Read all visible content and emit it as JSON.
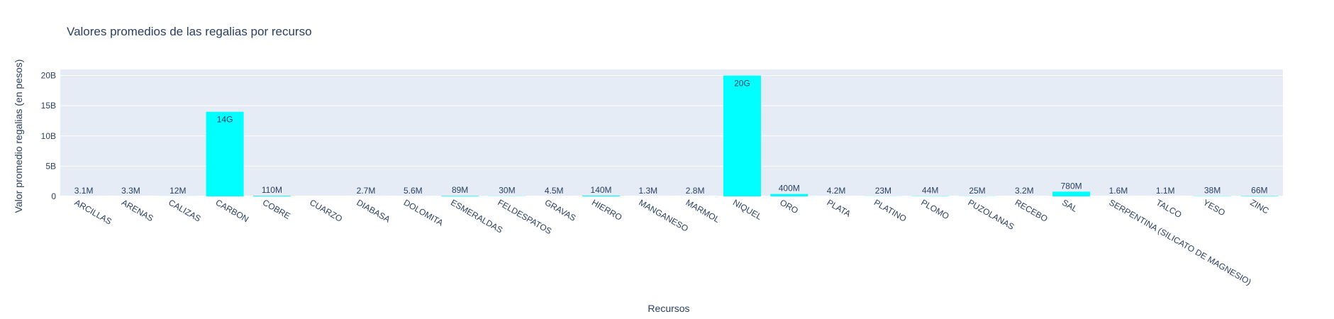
{
  "chart_data": {
    "type": "bar",
    "title": "Valores promedios de las regalias por recurso",
    "xlabel": "Recursos",
    "ylabel": "Valor promedio regalias (en pesos)",
    "ylim": [
      0,
      21000000000
    ],
    "yticks": [
      {
        "value": 0,
        "label": "0"
      },
      {
        "value": 5000000000,
        "label": "5B"
      },
      {
        "value": 10000000000,
        "label": "10B"
      },
      {
        "value": 15000000000,
        "label": "15B"
      },
      {
        "value": 20000000000,
        "label": "20B"
      }
    ],
    "grid": true,
    "bar_color": "#00FFFF",
    "plot_bg": "#E5ECF6",
    "categories": [
      "ARCILLAS",
      "ARENAS",
      "CALIZAS",
      "CARBON",
      "COBRE",
      "CUARZO",
      "DIABASA",
      "DOLOMITA",
      "ESMERALDAS",
      "FELDESPATOS",
      "GRAVAS",
      "HIERRO",
      "MANGANESO",
      "MARMOL",
      "NIQUEL",
      "ORO",
      "PLATA",
      "PLATINO",
      "PLOMO",
      "PUZOLANAS",
      "RECEBO",
      "SAL",
      "SERPENTINA (SILICATO DE MAGNESIO)",
      "TALCO",
      "YESO",
      "ZINC"
    ],
    "values": [
      3100000,
      3300000,
      12000000,
      14000000000,
      110000000,
      0,
      2700000,
      5600000,
      89000000,
      30000000,
      4500000,
      140000000,
      1300000,
      2800000,
      20000000000,
      400000000,
      4200000,
      23000000,
      44000000,
      25000000,
      3200000,
      780000000,
      1600000,
      1100000,
      38000000,
      66000000
    ],
    "data_labels": [
      "3.1M",
      "3.3M",
      "12M",
      "14G",
      "110M",
      "",
      "2.7M",
      "5.6M",
      "89M",
      "30M",
      "4.5M",
      "140M",
      "1.3M",
      "2.8M",
      "20G",
      "400M",
      "4.2M",
      "23M",
      "44M",
      "25M",
      "3.2M",
      "780M",
      "1.6M",
      "1.1M",
      "38M",
      "66M"
    ]
  }
}
